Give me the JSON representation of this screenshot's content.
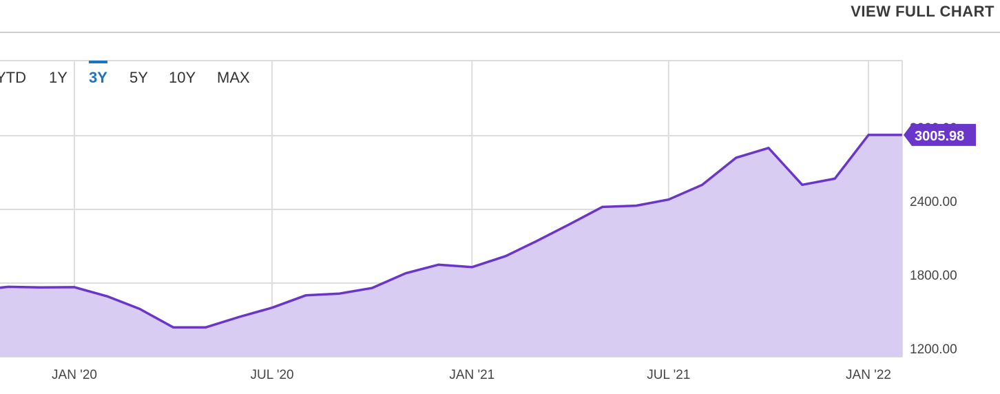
{
  "header": {
    "view_full_chart": "VIEW FULL CHART"
  },
  "range_tabs": [
    {
      "label": "YTD",
      "active": false
    },
    {
      "label": "1Y",
      "active": false
    },
    {
      "label": "3Y",
      "active": true
    },
    {
      "label": "5Y",
      "active": false
    },
    {
      "label": "10Y",
      "active": false
    },
    {
      "label": "MAX",
      "active": false
    }
  ],
  "colors": {
    "line": "#6a36c9",
    "fill": "#d9ccf2",
    "grid": "#dddddd",
    "accent": "#1a73c7",
    "badge": "#6a36c9"
  },
  "chart_data": {
    "type": "area",
    "x_labels": [
      "JAN '20",
      "JUL '20",
      "JAN '21",
      "JUL '21",
      "JAN '22"
    ],
    "x_label_dates": [
      "2020-01-01",
      "2020-07-01",
      "2021-01-01",
      "2021-07-01",
      "2022-01-01"
    ],
    "y_ticks": [
      1200,
      1800,
      2400,
      3000
    ],
    "y_tick_labels": [
      "1200.00",
      "1800.00",
      "2400.00",
      "3000.00"
    ],
    "ylim": [
      1200,
      3000
    ],
    "last_value_label": "3005.98",
    "series": [
      {
        "x": [
          "2019-10-01",
          "2019-11-01",
          "2019-12-01",
          "2020-01-01",
          "2020-02-01",
          "2020-03-01",
          "2020-04-01",
          "2020-05-01",
          "2020-06-01",
          "2020-07-01",
          "2020-08-01",
          "2020-09-01",
          "2020-10-01",
          "2020-11-01",
          "2020-12-01",
          "2021-01-01",
          "2021-02-01",
          "2021-03-01",
          "2021-04-01",
          "2021-05-01",
          "2021-06-01",
          "2021-07-01",
          "2021-08-01",
          "2021-09-01",
          "2021-10-01",
          "2021-11-01",
          "2021-12-01",
          "2022-01-01",
          "2022-02-01"
        ],
        "values": [
          1740,
          1770,
          1765,
          1767,
          1690,
          1590,
          1440,
          1440,
          1525,
          1600,
          1700,
          1715,
          1760,
          1880,
          1950,
          1930,
          2020,
          2140,
          2280,
          2420,
          2430,
          2480,
          2600,
          2820,
          2900,
          2600,
          2650,
          3005.98,
          3005.98
        ]
      }
    ]
  }
}
